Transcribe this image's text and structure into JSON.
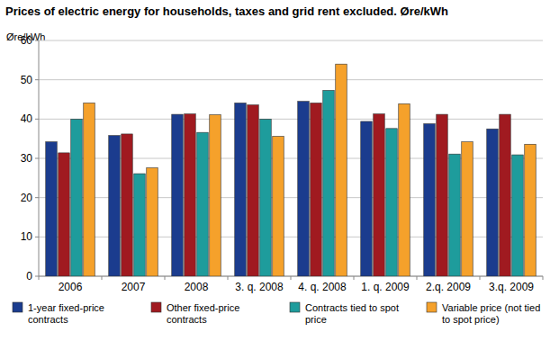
{
  "chart_data": {
    "type": "bar",
    "title": "Prices of electric energy for households, taxes and grid rent excluded. Øre/kWh",
    "y_label": "Øre/kWh",
    "categories": [
      "2006",
      "2007",
      "2008",
      "3. q. 2008",
      "4. q. 2008",
      "1. q. 2009",
      "2.q. 2009",
      "3.q. 2009"
    ],
    "series": [
      {
        "name": "1-year fixed-price contracts",
        "color": "#1b3c8e",
        "values": [
          34.2,
          35.8,
          41.2,
          44.1,
          44.5,
          39.4,
          38.8,
          37.5
        ]
      },
      {
        "name": "Other fixed-price contracts",
        "color": "#a01a20",
        "values": [
          31.4,
          36.2,
          41.3,
          43.6,
          44.1,
          41.3,
          41.2,
          41.2
        ]
      },
      {
        "name": "Contracts tied to spot price",
        "color": "#1e9c9c",
        "values": [
          40.0,
          26.1,
          36.6,
          40.0,
          47.3,
          37.6,
          31.1,
          30.9
        ]
      },
      {
        "name": "Variable price (not tied to spot price)",
        "color": "#f5a12b",
        "values": [
          44.1,
          27.6,
          41.1,
          35.6,
          54.0,
          43.9,
          34.2,
          33.6
        ]
      }
    ],
    "ylim": [
      0,
      60
    ],
    "yticks": [
      0,
      10,
      20,
      30,
      40,
      50,
      60
    ],
    "grid": true,
    "legend": "bottom"
  }
}
